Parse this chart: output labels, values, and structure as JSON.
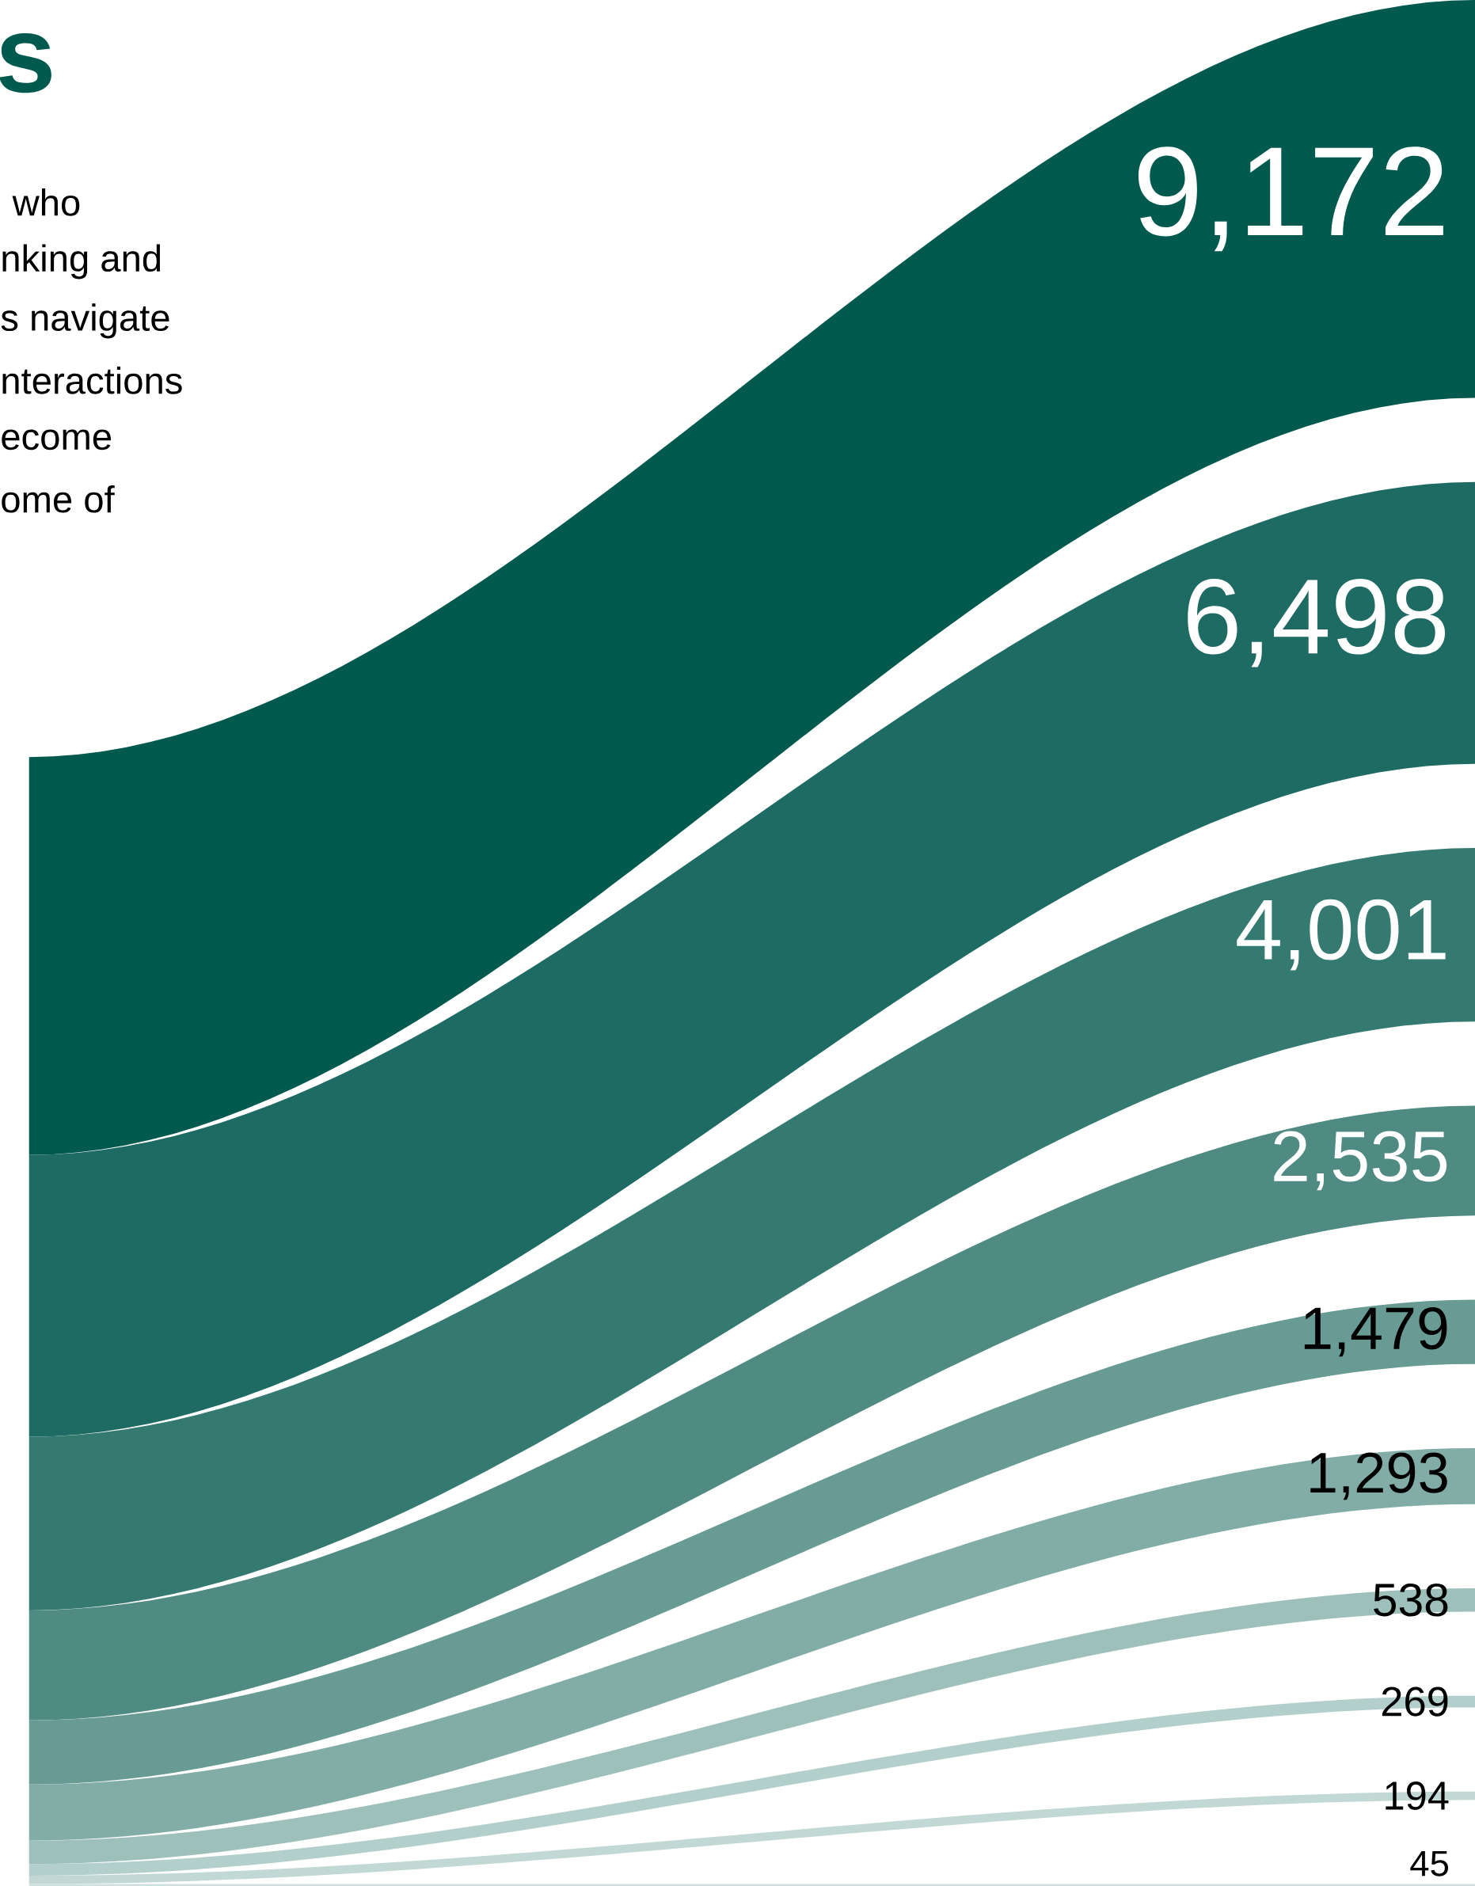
{
  "chart_data": {
    "type": "other",
    "title": "s",
    "annotations": [
      "who",
      "nking and",
      "s navigate",
      "nteractions",
      "ecome",
      "ome of"
    ],
    "categories": [
      null,
      null,
      null,
      null,
      null,
      null,
      null,
      null,
      null,
      null
    ],
    "values": [
      9172,
      6498,
      4001,
      2535,
      1479,
      1293,
      538,
      269,
      194,
      45
    ],
    "colors": [
      "#025a4e",
      "#1d6b62",
      "#347a71",
      "#4f8b82",
      "#679b94",
      "#82ada7",
      "#9dc0bb",
      "#b3cfcb",
      "#c1d8d5",
      "#cde0dd"
    ],
    "value_labels": [
      "9,172",
      "6,498",
      "4,001",
      "2,535",
      "1,479",
      "1,293",
      "538",
      "269",
      "194",
      "45"
    ]
  }
}
